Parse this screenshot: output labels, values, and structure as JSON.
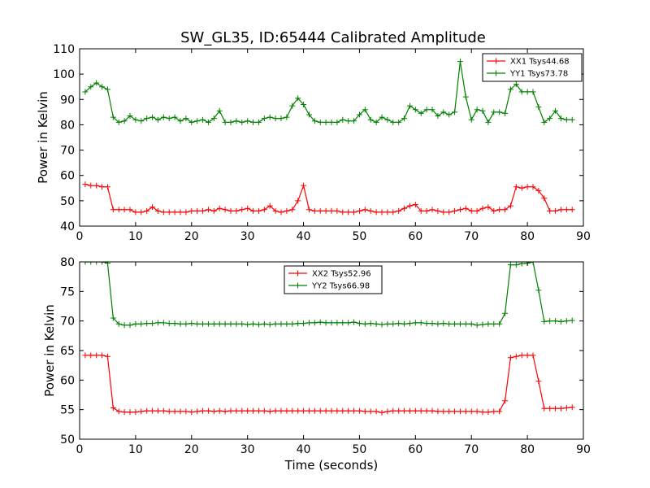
{
  "chart_data": [
    {
      "type": "line",
      "title": "SW_GL35, ID:65444 Calibrated Amplitude",
      "xlabel": "",
      "ylabel": "Power in Kelvin",
      "xlim": [
        0,
        90
      ],
      "ylim": [
        40,
        110
      ],
      "xticks": [
        0,
        10,
        20,
        30,
        40,
        50,
        60,
        70,
        80,
        90
      ],
      "yticks": [
        40,
        50,
        60,
        70,
        80,
        90,
        100,
        110
      ],
      "legend_position": "top-right",
      "x": [
        1,
        2,
        3,
        4,
        5,
        6,
        7,
        8,
        9,
        10,
        11,
        12,
        13,
        14,
        15,
        16,
        17,
        18,
        19,
        20,
        21,
        22,
        23,
        24,
        25,
        26,
        27,
        28,
        29,
        30,
        31,
        32,
        33,
        34,
        35,
        36,
        37,
        38,
        39,
        40,
        41,
        42,
        43,
        44,
        45,
        46,
        47,
        48,
        49,
        50,
        51,
        52,
        53,
        54,
        55,
        56,
        57,
        58,
        59,
        60,
        61,
        62,
        63,
        64,
        65,
        66,
        67,
        68,
        69,
        70,
        71,
        72,
        73,
        74,
        75,
        76,
        77,
        78,
        79,
        80,
        81,
        82,
        83,
        84,
        85,
        86,
        87,
        88
      ],
      "series": [
        {
          "name": "XX1 Tsys44.68",
          "color": "#ff0000",
          "values": [
            56.5,
            56,
            56,
            55.5,
            55.5,
            46.5,
            46.5,
            46.5,
            46.5,
            45.5,
            45.5,
            46,
            47.5,
            46,
            45.5,
            45.5,
            45.5,
            45.5,
            45.5,
            46,
            46,
            46,
            46.5,
            46,
            47,
            46.5,
            46,
            46,
            46.5,
            47,
            46,
            46,
            46.5,
            48,
            46,
            45.5,
            46,
            46.5,
            50,
            56,
            46.5,
            46,
            46,
            46,
            46,
            46,
            45.5,
            45.5,
            45.5,
            46,
            46.5,
            46,
            45.5,
            45.5,
            45.5,
            45.5,
            46,
            47,
            48,
            48.5,
            46,
            46,
            46.5,
            46,
            45.5,
            45.5,
            46,
            46.5,
            47,
            46,
            46,
            47,
            47.5,
            46,
            46.5,
            46.5,
            48,
            55.5,
            55,
            55.5,
            55.5,
            54,
            51,
            46,
            46,
            46.5,
            46.5,
            46.5
          ]
        },
        {
          "name": "YY1 Tsys73.78",
          "color": "#008000",
          "values": [
            93,
            95,
            96.5,
            95,
            94,
            83,
            81,
            81.5,
            83.5,
            82,
            81.5,
            82.5,
            83,
            82,
            83,
            82.5,
            83,
            81.5,
            82.5,
            81,
            81.5,
            82,
            81,
            82.5,
            85.5,
            81,
            81,
            81.5,
            81,
            81.5,
            81,
            81,
            82.5,
            83,
            82.5,
            82.5,
            83,
            87.5,
            90.5,
            88,
            84,
            81.5,
            81,
            81,
            81,
            81,
            82,
            81.5,
            81.5,
            84,
            86,
            82,
            81,
            83,
            82,
            81,
            81,
            82.5,
            87.5,
            86,
            84.5,
            86,
            86,
            83.5,
            85,
            84,
            85,
            105,
            91,
            82,
            86,
            85.5,
            81,
            85,
            85,
            84.5,
            94,
            96,
            93,
            93,
            93,
            87,
            81,
            82.5,
            85.5,
            82.5,
            82,
            82
          ]
        }
      ]
    },
    {
      "type": "line",
      "title": "",
      "xlabel": "Time (seconds)",
      "ylabel": "Power in Kelvin",
      "xlim": [
        0,
        90
      ],
      "ylim": [
        50,
        80
      ],
      "xticks": [
        0,
        10,
        20,
        30,
        40,
        50,
        60,
        70,
        80,
        90
      ],
      "yticks": [
        50,
        55,
        60,
        65,
        70,
        75,
        80
      ],
      "legend_position": "top-center",
      "x": [
        1,
        2,
        3,
        4,
        5,
        6,
        7,
        8,
        9,
        10,
        11,
        12,
        13,
        14,
        15,
        16,
        17,
        18,
        19,
        20,
        21,
        22,
        23,
        24,
        25,
        26,
        27,
        28,
        29,
        30,
        31,
        32,
        33,
        34,
        35,
        36,
        37,
        38,
        39,
        40,
        41,
        42,
        43,
        44,
        45,
        46,
        47,
        48,
        49,
        50,
        51,
        52,
        53,
        54,
        55,
        56,
        57,
        58,
        59,
        60,
        61,
        62,
        63,
        64,
        65,
        66,
        67,
        68,
        69,
        70,
        71,
        72,
        73,
        74,
        75,
        76,
        77,
        78,
        79,
        80,
        81,
        82,
        83,
        84,
        85,
        86,
        87,
        88
      ],
      "series": [
        {
          "name": "XX2 Tsys52.96",
          "color": "#ff0000",
          "values": [
            64.2,
            64.2,
            64.2,
            64.2,
            64,
            55.3,
            54.7,
            54.6,
            54.6,
            54.6,
            54.7,
            54.8,
            54.8,
            54.8,
            54.8,
            54.7,
            54.7,
            54.7,
            54.7,
            54.6,
            54.7,
            54.8,
            54.8,
            54.7,
            54.8,
            54.7,
            54.8,
            54.8,
            54.8,
            54.8,
            54.8,
            54.8,
            54.8,
            54.7,
            54.8,
            54.8,
            54.8,
            54.8,
            54.8,
            54.8,
            54.8,
            54.8,
            54.8,
            54.8,
            54.8,
            54.8,
            54.8,
            54.8,
            54.8,
            54.8,
            54.7,
            54.7,
            54.7,
            54.5,
            54.7,
            54.8,
            54.8,
            54.8,
            54.8,
            54.8,
            54.8,
            54.8,
            54.8,
            54.7,
            54.7,
            54.7,
            54.7,
            54.7,
            54.7,
            54.7,
            54.7,
            54.6,
            54.6,
            54.7,
            54.7,
            56.5,
            63.8,
            64,
            64.2,
            64.2,
            64.2,
            59.8,
            55.2,
            55.2,
            55.2,
            55.2,
            55.3,
            55.4
          ]
        },
        {
          "name": "YY2 Tsys66.98",
          "color": "#008000",
          "values": [
            80,
            80,
            80,
            80,
            79.8,
            70.5,
            69.5,
            69.3,
            69.3,
            69.5,
            69.5,
            69.6,
            69.6,
            69.7,
            69.7,
            69.6,
            69.6,
            69.5,
            69.5,
            69.6,
            69.5,
            69.5,
            69.5,
            69.5,
            69.5,
            69.5,
            69.5,
            69.5,
            69.5,
            69.4,
            69.5,
            69.4,
            69.5,
            69.4,
            69.5,
            69.5,
            69.5,
            69.5,
            69.6,
            69.6,
            69.7,
            69.7,
            69.8,
            69.7,
            69.7,
            69.7,
            69.7,
            69.7,
            69.8,
            69.6,
            69.5,
            69.6,
            69.5,
            69.4,
            69.5,
            69.5,
            69.6,
            69.5,
            69.6,
            69.7,
            69.7,
            69.6,
            69.6,
            69.5,
            69.6,
            69.5,
            69.5,
            69.5,
            69.5,
            69.5,
            69.3,
            69.4,
            69.5,
            69.5,
            69.5,
            71.3,
            79.5,
            79.5,
            79.7,
            79.8,
            80,
            75.2,
            69.9,
            70,
            70,
            69.9,
            70,
            70.1
          ]
        }
      ]
    }
  ]
}
